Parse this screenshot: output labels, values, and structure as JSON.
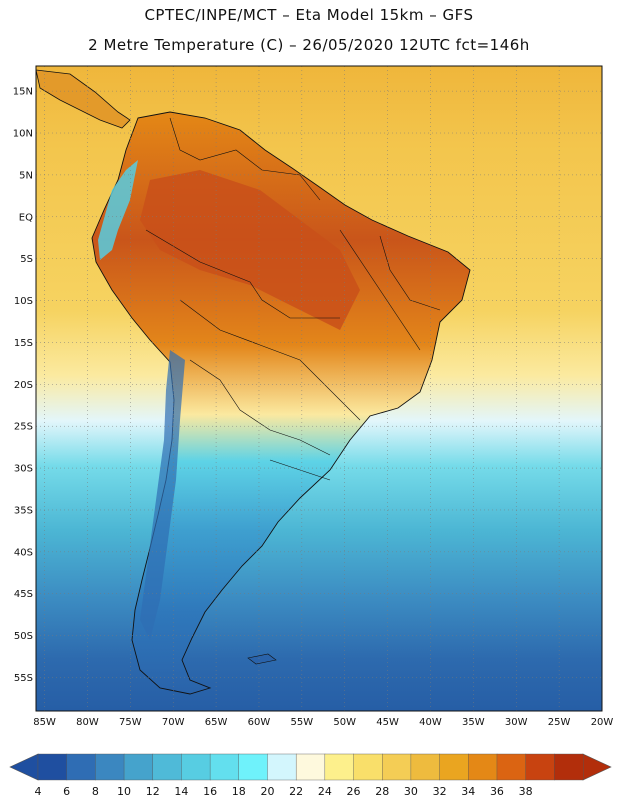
{
  "title": {
    "line1": "CPTEC/INPE/MCT –  Eta Model 15km – GFS",
    "line2": "2 Metre Temperature (C) – 26/05/2020 12UTC fct=146h"
  },
  "map": {
    "lon_range": [
      -86,
      -20
    ],
    "lat_range": [
      -59,
      18
    ],
    "lat_ticks": [
      "15N",
      "10N",
      "5N",
      "EQ",
      "5S",
      "10S",
      "15S",
      "20S",
      "25S",
      "30S",
      "35S",
      "40S",
      "45S",
      "50S",
      "55S"
    ],
    "lon_ticks": [
      "85W",
      "80W",
      "75W",
      "70W",
      "65W",
      "60W",
      "55W",
      "50W",
      "45W",
      "40W",
      "35W",
      "30W",
      "25W",
      "20W"
    ]
  },
  "colorbar": {
    "labels": [
      "4",
      "6",
      "8",
      "10",
      "12",
      "14",
      "16",
      "18",
      "20",
      "22",
      "24",
      "26",
      "28",
      "30",
      "32",
      "34",
      "36",
      "38"
    ],
    "colors": [
      "#1f4fa0",
      "#2f6db4",
      "#3b87c0",
      "#45a3cc",
      "#4fbad8",
      "#57cde2",
      "#63dfee",
      "#6ff2fb",
      "#d3f6fd",
      "#fef9dd",
      "#fdf08c",
      "#f9df6a",
      "#f4cd55",
      "#eebb3e",
      "#eaa520",
      "#e48816",
      "#db6412",
      "#c84310",
      "#b22e0b"
    ]
  }
}
